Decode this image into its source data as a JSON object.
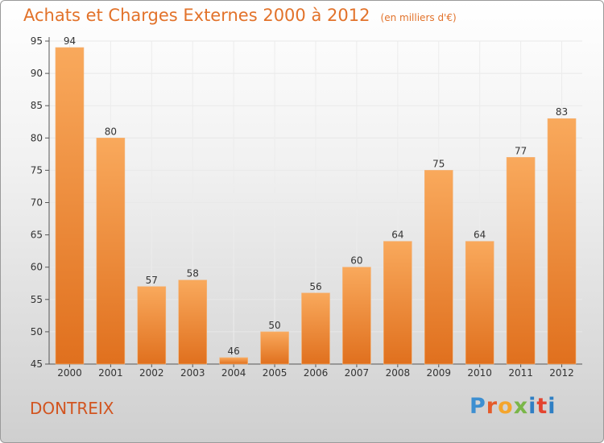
{
  "title": "Achats et Charges Externes 2000 à 2012",
  "unit": "(en milliers d'€)",
  "commune": "DONTREIX",
  "logo": "Proxiti",
  "colors": {
    "bar": "#f08a30",
    "bar_light": "#f8a65a",
    "text_accent": "#e2722a"
  },
  "chart_data": {
    "type": "bar",
    "categories": [
      "2000",
      "2001",
      "2002",
      "2003",
      "2004",
      "2005",
      "2006",
      "2007",
      "2008",
      "2009",
      "2010",
      "2011",
      "2012"
    ],
    "values": [
      94,
      80,
      57,
      58,
      46,
      50,
      56,
      60,
      64,
      75,
      64,
      77,
      83
    ],
    "ylim": [
      45,
      95
    ],
    "yticks": [
      45,
      50,
      55,
      60,
      65,
      70,
      75,
      80,
      85,
      90,
      95
    ],
    "grid": true,
    "data_labels": true
  }
}
